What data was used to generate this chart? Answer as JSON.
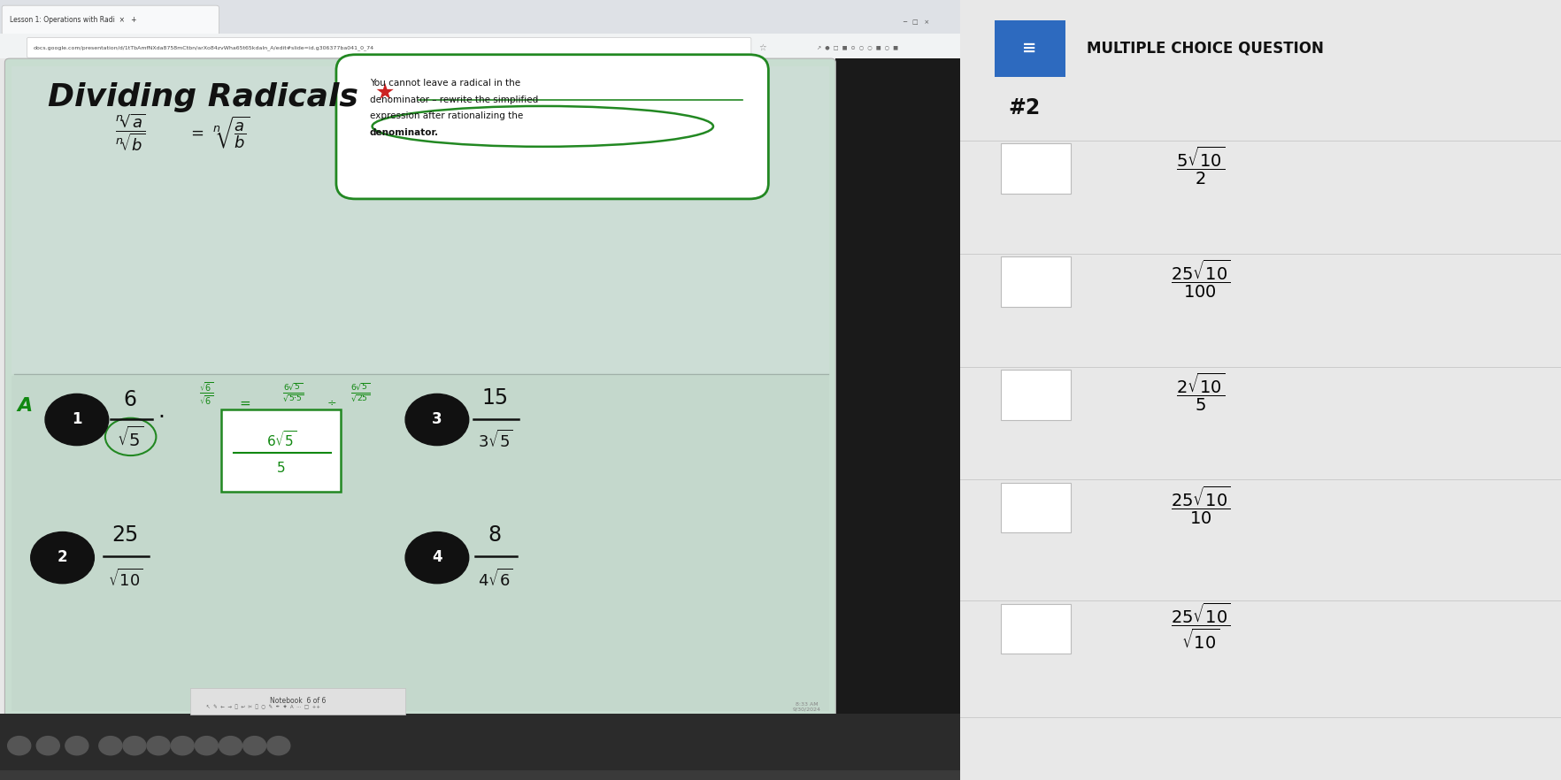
{
  "title": "Dividing Radicals",
  "question_number": "#2",
  "header_label": "MULTIPLE CHOICE QUESTION",
  "bg_screen": "#1a1a2e",
  "browser_bg": "#dee1e6",
  "slide_bg": "#c8ddd0",
  "slide_lower_bg": "#c0d8cc",
  "right_panel_bg": "#e8e8e8",
  "dark_bar": "#1e1e1e",
  "taskbar_bg": "#2b2b2b",
  "choice_rows": [
    {
      "num": "5\\u221a10",
      "den": "2"
    },
    {
      "num": "25\\u221a10",
      "den": "100"
    },
    {
      "num": "2\\u221a10",
      "den": "5"
    },
    {
      "num": "25\\u221a10",
      "den": "10"
    },
    {
      "num": "25\\u221a10",
      "den": "\\u221a10"
    }
  ]
}
